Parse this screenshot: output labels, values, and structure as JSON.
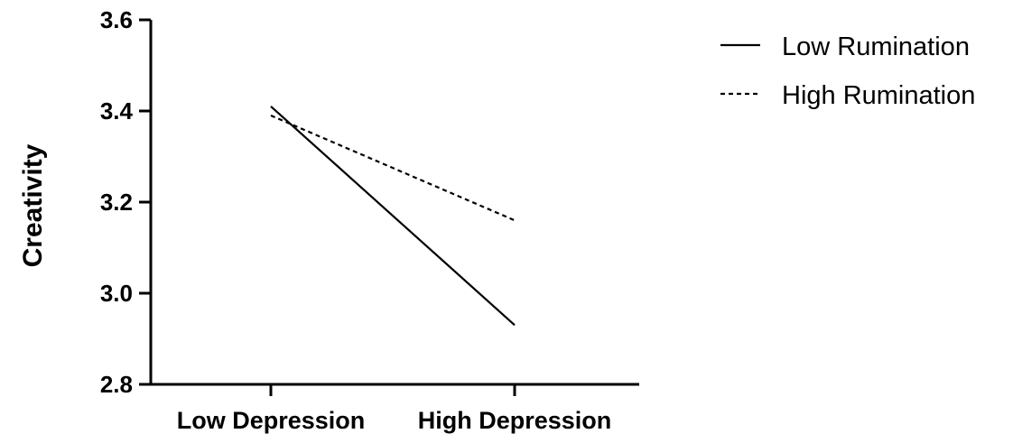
{
  "chart_data": {
    "type": "line",
    "categories": [
      "Low Depression",
      "High Depression"
    ],
    "series": [
      {
        "name": "Low Rumination",
        "values": [
          3.41,
          2.93
        ],
        "line_style": "solid",
        "color": "#000000"
      },
      {
        "name": "High Rumination",
        "values": [
          3.39,
          3.16
        ],
        "line_style": "dotted",
        "color": "#000000"
      }
    ],
    "ylabel": "Creativity",
    "xlabel": "",
    "ylim": [
      2.8,
      3.6
    ],
    "yticks": [
      "2.8",
      "3.0",
      "3.2",
      "3.4",
      "3.6"
    ],
    "grid": false,
    "legend_position": "top-right"
  }
}
